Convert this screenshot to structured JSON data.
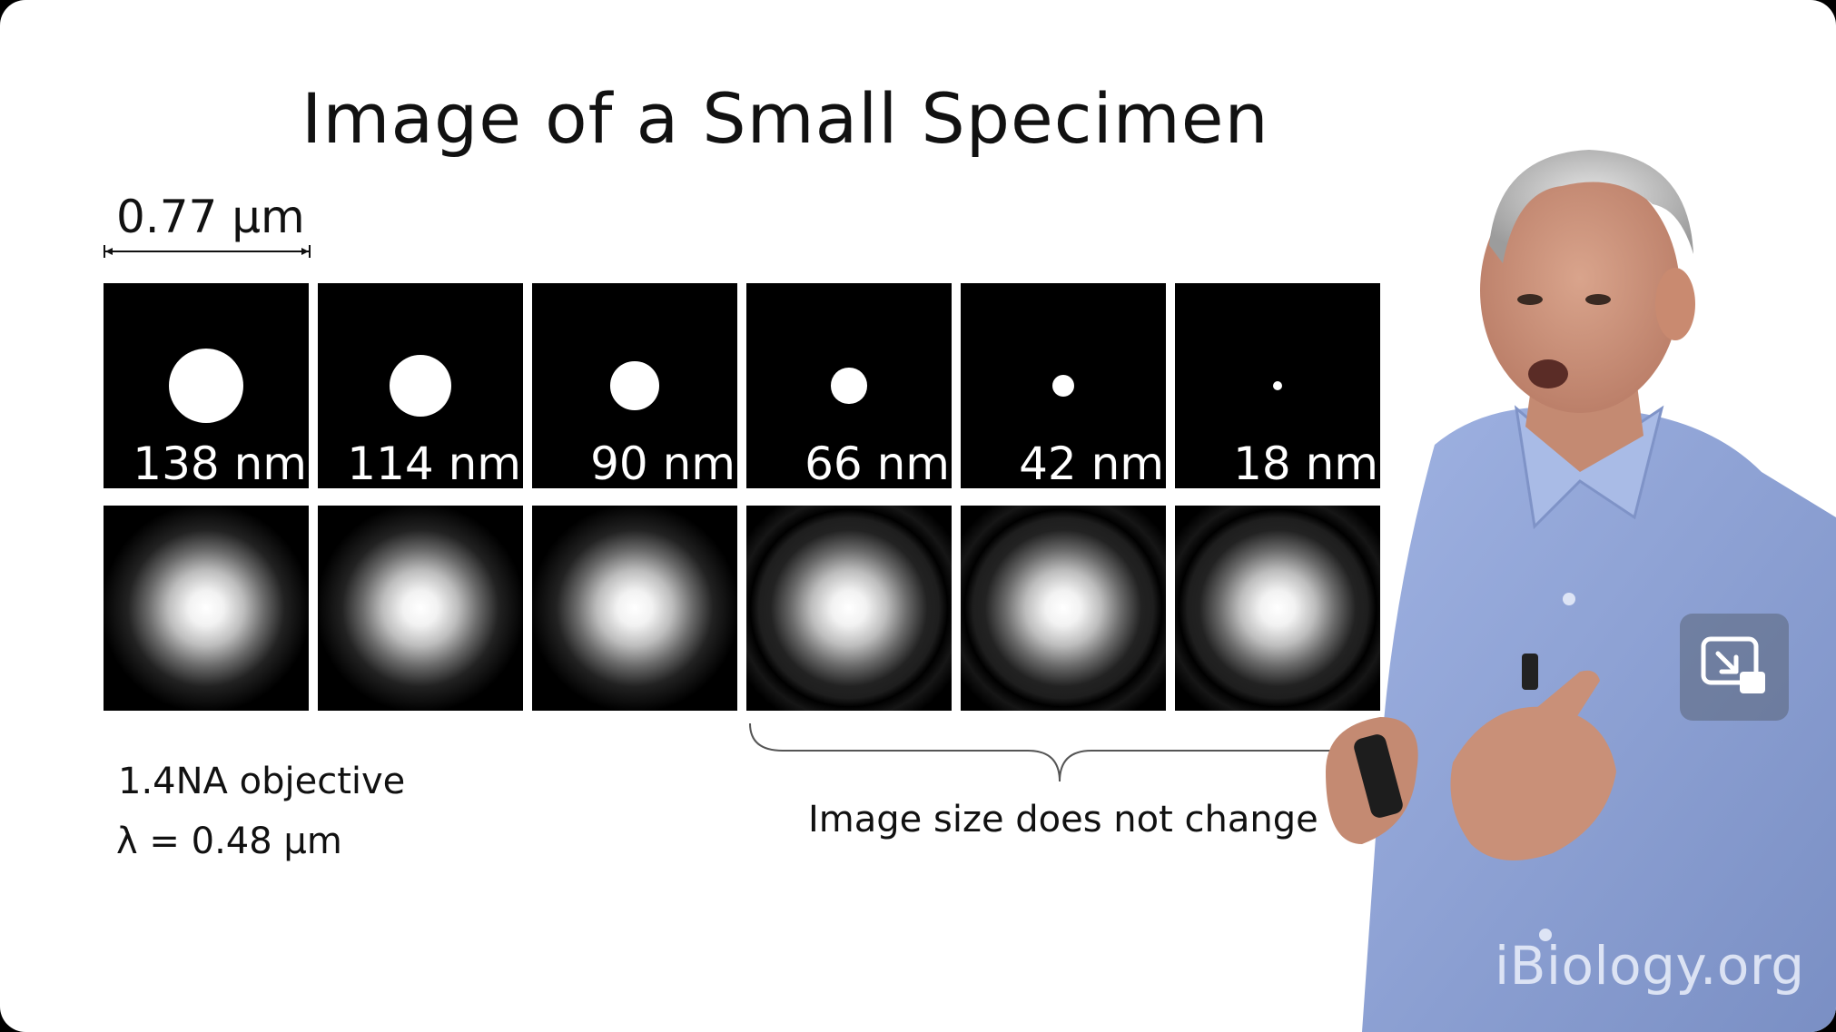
{
  "slide": {
    "title": "Image of a Small Specimen",
    "scale_bar_label": "0.77 μm",
    "specimens": [
      {
        "label": "138 nm",
        "size_nm": 138
      },
      {
        "label": "114 nm",
        "size_nm": 114
      },
      {
        "label": "90 nm",
        "size_nm": 90
      },
      {
        "label": "66 nm",
        "size_nm": 66
      },
      {
        "label": "42 nm",
        "size_nm": 42
      },
      {
        "label": "18 nm",
        "size_nm": 18
      }
    ],
    "objective_note": "1.4NA objective",
    "wavelength_note": "λ = 0.48 μm",
    "brace_note": "Image size does not change"
  },
  "overlay": {
    "watermark": "iBiology.org",
    "pip_icon": "picture-in-picture-icon"
  },
  "colors": {
    "slide_bg": "#ffffff",
    "panel_bg": "#000000",
    "dot": "#ffffff",
    "shirt": "#8fa3d6"
  }
}
